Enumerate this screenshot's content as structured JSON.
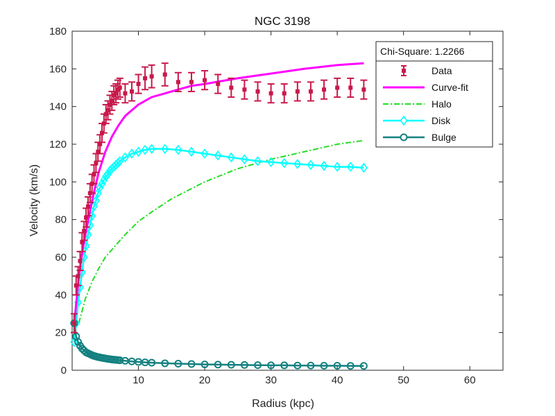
{
  "chart_data": {
    "type": "line",
    "title": "NGC 3198",
    "xlabel": "Radius (kpc)",
    "ylabel": "Velocity (km/s)",
    "xlim": [
      0,
      65
    ],
    "ylim": [
      0,
      180
    ],
    "xticks": [
      10,
      20,
      30,
      40,
      50,
      60
    ],
    "yticks": [
      0,
      20,
      40,
      60,
      80,
      100,
      120,
      140,
      160,
      180
    ],
    "grid": false,
    "legend_position": "top-right",
    "annotation": "Chi-Square: 1.2266",
    "colors": {
      "data": "#C8194B",
      "curve_fit": "#FF00FF",
      "halo": "#22DD22",
      "disk": "#00FFFF",
      "bulge": "#138080"
    },
    "series": [
      {
        "name": "Data",
        "style": "errorbar",
        "x": [
          0.3,
          0.6,
          0.9,
          1.2,
          1.5,
          1.8,
          2.1,
          2.4,
          2.7,
          3.0,
          3.3,
          3.6,
          3.9,
          4.2,
          4.5,
          4.8,
          5.1,
          5.4,
          5.7,
          6.0,
          6.3,
          6.6,
          6.9,
          7.2,
          8.0,
          9.0,
          10.0,
          11.0,
          12.0,
          14.0,
          16.0,
          18.0,
          20.0,
          22.0,
          24.0,
          26.0,
          28.0,
          30.0,
          32.0,
          34.0,
          36.0,
          38.0,
          40.0,
          42.0,
          44.0
        ],
        "y": [
          25,
          45,
          50,
          58,
          68,
          74,
          81,
          87,
          94,
          99,
          104,
          110,
          116,
          120,
          126,
          131,
          136,
          138,
          141,
          143,
          146,
          147,
          149,
          150,
          147,
          148,
          152,
          155,
          156,
          157,
          153,
          153,
          154,
          152,
          150,
          149,
          148,
          147,
          147,
          148,
          148,
          149,
          150,
          150,
          149
        ],
        "err": [
          5,
          5,
          5,
          5,
          5,
          5,
          5,
          5,
          5,
          5,
          5,
          5,
          5,
          5,
          5,
          5,
          5,
          5,
          5,
          5,
          5,
          5,
          5,
          5,
          5,
          5,
          5,
          6,
          6,
          6,
          5,
          5,
          5,
          5,
          5,
          5,
          5,
          5,
          5,
          5,
          5,
          5,
          5,
          5,
          5
        ]
      },
      {
        "name": "Curve-fit",
        "style": "solid",
        "x": [
          0.3,
          0.6,
          1.0,
          1.5,
          2.0,
          3.0,
          4.0,
          5.0,
          6.0,
          7.0,
          8.0,
          10.0,
          12.0,
          14.0,
          16.0,
          18.0,
          20.0,
          25.0,
          30.0,
          35.0,
          40.0,
          44.0
        ],
        "y": [
          24,
          35,
          49,
          62,
          72,
          90,
          105,
          116,
          124,
          130,
          135,
          141,
          145,
          147,
          149,
          151,
          152,
          155,
          157.5,
          160,
          162,
          163
        ]
      },
      {
        "name": "Halo",
        "style": "dashdot",
        "x": [
          1.0,
          2.0,
          3.0,
          4.0,
          5.0,
          6.0,
          8.0,
          10.0,
          12.0,
          15.0,
          20.0,
          25.0,
          30.0,
          35.0,
          40.0,
          44.0
        ],
        "y": [
          25,
          38,
          47,
          54,
          60,
          64,
          72,
          79,
          84,
          91,
          100,
          107,
          112,
          116,
          120,
          122
        ]
      },
      {
        "name": "Disk",
        "style": "solid-diamond",
        "x": [
          0.3,
          0.6,
          0.9,
          1.2,
          1.5,
          1.8,
          2.1,
          2.4,
          2.7,
          3.0,
          3.3,
          3.6,
          3.9,
          4.2,
          4.5,
          4.8,
          5.1,
          5.4,
          5.7,
          6.0,
          6.3,
          6.6,
          6.9,
          7.2,
          8.0,
          9.0,
          10.0,
          11.0,
          12.0,
          14.0,
          16.0,
          18.0,
          20.0,
          22.0,
          24.0,
          26.0,
          28.0,
          30.0,
          32.0,
          34.0,
          36.0,
          38.0,
          40.0,
          42.0,
          44.0
        ],
        "y": [
          15,
          25,
          36,
          44,
          52,
          60,
          66,
          72,
          77,
          82,
          87,
          90,
          94,
          97,
          99,
          101,
          103,
          104,
          106,
          107,
          108,
          109,
          110,
          111,
          113,
          115,
          116,
          117,
          117.5,
          117.5,
          117,
          116,
          115,
          114,
          113,
          112,
          111,
          110.5,
          110,
          109.5,
          109,
          108.5,
          108,
          108,
          107.5
        ]
      },
      {
        "name": "Bulge",
        "style": "solid-circle",
        "x": [
          0.3,
          0.6,
          0.9,
          1.2,
          1.5,
          1.8,
          2.1,
          2.4,
          2.7,
          3.0,
          3.3,
          3.6,
          3.9,
          4.2,
          4.5,
          4.8,
          5.1,
          5.4,
          5.7,
          6.0,
          6.3,
          6.6,
          6.9,
          7.2,
          8.0,
          9.0,
          10.0,
          11.0,
          12.0,
          14.0,
          16.0,
          18.0,
          20.0,
          22.0,
          24.0,
          26.0,
          28.0,
          30.0,
          32.0,
          34.0,
          36.0,
          38.0,
          40.0,
          42.0,
          44.0
        ],
        "y": [
          25,
          18,
          15,
          13,
          11.5,
          10.5,
          9.5,
          9,
          8.5,
          8,
          7.6,
          7.3,
          7,
          6.8,
          6.6,
          6.4,
          6.2,
          6,
          5.9,
          5.7,
          5.6,
          5.5,
          5.4,
          5.3,
          5,
          4.7,
          4.4,
          4.2,
          4,
          3.7,
          3.5,
          3.3,
          3.1,
          3,
          2.9,
          2.8,
          2.7,
          2.6,
          2.6,
          2.5,
          2.5,
          2.4,
          2.4,
          2.3,
          2.3
        ]
      }
    ]
  }
}
